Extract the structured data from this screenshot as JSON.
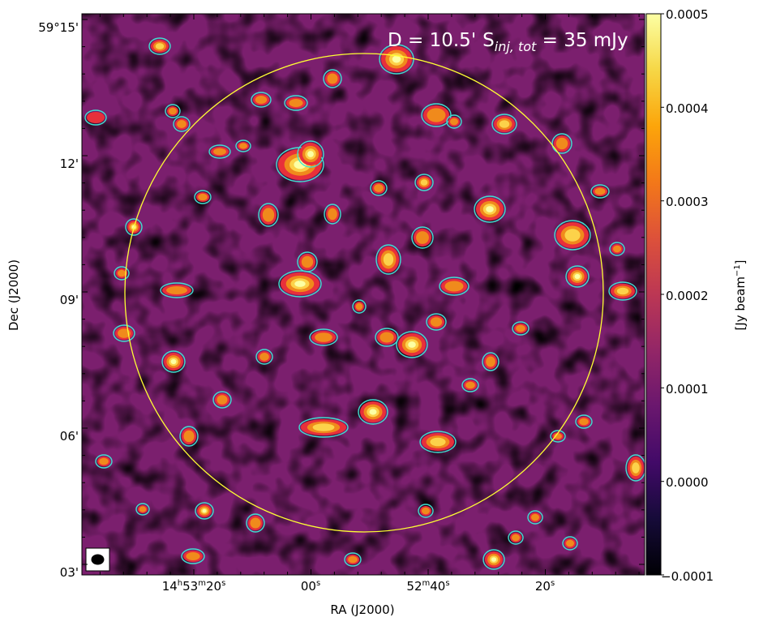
{
  "chart_data": {
    "type": "heatmap",
    "title": "D = 10.5'  S_inj,tot = 35 mJy",
    "annotation": {
      "prefix": "D = 10.5'",
      "s_main": "S",
      "s_sub": "inj, tot",
      "suffix": " = 35 mJy"
    },
    "xlabel": "RA (J2000)",
    "ylabel": "Dec (J2000)",
    "x_ticks": [
      {
        "h": "14",
        "hs": "h",
        "m": "53",
        "ms": "m",
        "s": "20",
        "ss": "s"
      },
      {
        "s": "00",
        "ss": "s"
      },
      {
        "m": "52",
        "ms": "m",
        "s": "40",
        "ss": "s"
      },
      {
        "s": "20",
        "ss": "s"
      }
    ],
    "y_ticks": [
      "59°15'",
      "12'",
      "09'",
      "06'",
      "03'"
    ],
    "colorbar": {
      "label": "[Jy beam",
      "label_exp": "−1",
      "label_close": "]",
      "ticks": [
        "0.0005",
        "0.0004",
        "0.0003",
        "0.0002",
        "0.0001",
        "0.0000",
        "−0.0001"
      ],
      "range": [
        -0.0001,
        0.0005
      ],
      "colormap": "inferno"
    },
    "circle": {
      "color": "#ffff33"
    },
    "contour_color": "#40e0d0",
    "beam": {
      "shape": "ellipse"
    },
    "grid": false,
    "legend": "none"
  }
}
